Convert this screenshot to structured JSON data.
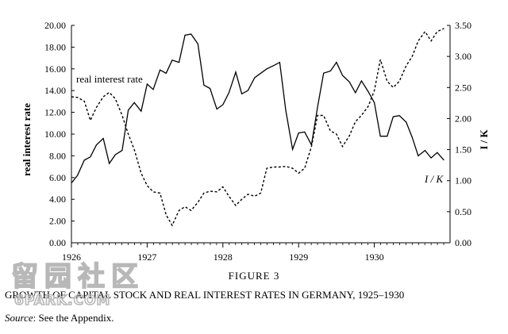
{
  "chart_data": {
    "type": "line",
    "title": "",
    "figure_number": "FIGURE 3",
    "figure_title": "GROWTH OF CAPITAL STOCK AND REAL INTEREST RATES IN GERMANY, 1925–1930",
    "source_label": "Source",
    "source_text": ": See the Appendix.",
    "xlabel": "",
    "ylabel_left": "real interest rate",
    "ylabel_right": "I / K",
    "xlim": [
      1926.0,
      1931.0
    ],
    "ylim_left": [
      0,
      20
    ],
    "ylim_right": [
      0,
      3.5
    ],
    "x_ticks": [
      "1926",
      "1927",
      "1928",
      "1929",
      "1930"
    ],
    "x_tick_values": [
      1926,
      1927,
      1928,
      1929,
      1930
    ],
    "y_left_ticks": [
      "0.00",
      "2.00",
      "4.00",
      "6.00",
      "8.00",
      "10.00",
      "12.00",
      "14.00",
      "16.00",
      "18.00",
      "20.00"
    ],
    "y_right_ticks": [
      "0.00",
      "0.50",
      "1.00",
      "1.50",
      "2.00",
      "2.50",
      "3.00",
      "3.50"
    ],
    "grid": false,
    "series": [
      {
        "name": "real interest rate",
        "axis": "left",
        "style": "solid",
        "x": [
          1926.0,
          1926.08,
          1926.17,
          1926.25,
          1926.33,
          1926.42,
          1926.5,
          1926.58,
          1926.67,
          1926.75,
          1926.83,
          1926.92,
          1927.0,
          1927.08,
          1927.17,
          1927.25,
          1927.33,
          1927.42,
          1927.5,
          1927.58,
          1927.67,
          1927.75,
          1927.83,
          1927.92,
          1928.0,
          1928.08,
          1928.17,
          1928.25,
          1928.33,
          1928.42,
          1928.5,
          1928.58,
          1928.67,
          1928.75,
          1928.83,
          1928.92,
          1929.0,
          1929.08,
          1929.17,
          1929.25,
          1929.33,
          1929.42,
          1929.5,
          1929.58,
          1929.67,
          1929.75,
          1929.83,
          1929.92,
          1930.0,
          1930.08,
          1930.17,
          1930.25,
          1930.33,
          1930.42,
          1930.5,
          1930.58,
          1930.67,
          1930.75,
          1930.83,
          1930.92
        ],
        "values": [
          5.5,
          6.2,
          7.6,
          7.9,
          9.0,
          9.6,
          7.3,
          8.1,
          8.5,
          12.2,
          12.9,
          12.1,
          14.6,
          14.1,
          15.9,
          15.6,
          16.8,
          16.6,
          19.1,
          19.2,
          18.3,
          14.5,
          14.2,
          12.3,
          12.7,
          13.8,
          15.7,
          13.7,
          14.0,
          15.2,
          15.6,
          16.0,
          16.3,
          16.6,
          12.2,
          8.6,
          10.1,
          10.2,
          9.0,
          12.5,
          15.6,
          15.8,
          16.6,
          15.4,
          14.8,
          13.8,
          14.9,
          13.9,
          12.9,
          9.8,
          9.8,
          11.6,
          11.7,
          11.1,
          9.7,
          8.0,
          8.5,
          7.8,
          8.3,
          7.6
        ]
      },
      {
        "name": "I / K",
        "axis": "right",
        "style": "dashed",
        "x": [
          1926.0,
          1926.08,
          1926.17,
          1926.25,
          1926.33,
          1926.42,
          1926.5,
          1926.58,
          1926.67,
          1926.75,
          1926.83,
          1926.92,
          1927.0,
          1927.08,
          1927.17,
          1927.25,
          1927.33,
          1927.42,
          1927.5,
          1927.58,
          1927.67,
          1927.75,
          1927.83,
          1927.92,
          1928.0,
          1928.08,
          1928.17,
          1928.25,
          1928.33,
          1928.42,
          1928.5,
          1928.58,
          1928.67,
          1928.75,
          1928.83,
          1928.92,
          1929.0,
          1929.08,
          1929.17,
          1929.25,
          1929.33,
          1929.42,
          1929.5,
          1929.58,
          1929.67,
          1929.75,
          1929.83,
          1929.92,
          1930.0,
          1930.08,
          1930.17,
          1930.25,
          1930.33,
          1930.42,
          1930.5,
          1930.58,
          1930.67,
          1930.75,
          1930.83,
          1930.92
        ],
        "values": [
          2.35,
          2.34,
          2.28,
          1.97,
          2.18,
          2.35,
          2.42,
          2.32,
          2.05,
          1.75,
          1.5,
          1.12,
          0.92,
          0.82,
          0.8,
          0.45,
          0.28,
          0.52,
          0.58,
          0.52,
          0.65,
          0.8,
          0.83,
          0.82,
          0.9,
          0.75,
          0.6,
          0.7,
          0.78,
          0.75,
          0.8,
          1.2,
          1.22,
          1.22,
          1.23,
          1.2,
          1.12,
          1.2,
          1.55,
          2.05,
          2.05,
          1.8,
          1.75,
          1.55,
          1.72,
          1.95,
          2.05,
          2.2,
          2.45,
          2.95,
          2.6,
          2.5,
          2.6,
          2.85,
          3.0,
          3.25,
          3.4,
          3.25,
          3.4,
          3.45
        ]
      }
    ]
  },
  "watermark": {
    "chinese": "留园社区",
    "latin": "6PARK.COM"
  }
}
